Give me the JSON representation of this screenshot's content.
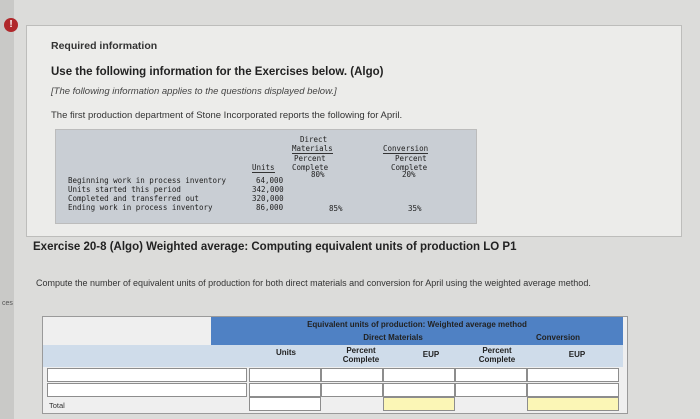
{
  "side": {
    "label": "ces"
  },
  "info": {
    "heading": "Required information",
    "subheading": "Use the following information for the Exercises below. (Algo)",
    "note": "[The following information applies to the questions displayed below.]",
    "intro": "The first production department of Stone Incorporated reports the following for April."
  },
  "data_table": {
    "headers": {
      "units": "Units",
      "dm_line1": "Direct",
      "dm_line2": "Materials",
      "dm_line3": "Percent",
      "dm_line4": "Complete",
      "cv_line1": "Conversion",
      "cv_line2": "Percent",
      "cv_line3": "Complete"
    },
    "rows": [
      {
        "label": "Beginning work in process inventory",
        "units": "64,000",
        "dm": "80%",
        "cv": "20%"
      },
      {
        "label": "Units started this period",
        "units": "342,000",
        "dm": "",
        "cv": ""
      },
      {
        "label": "Completed and transferred out",
        "units": "320,000",
        "dm": "",
        "cv": ""
      },
      {
        "label": "Ending work in process inventory",
        "units": "86,000",
        "dm": "85%",
        "cv": "35%"
      }
    ]
  },
  "exercise": {
    "title": "Exercise 20-8 (Algo) Weighted average: Computing equivalent units of production LO P1",
    "instructions": "Compute the number of equivalent units of production for both direct materials and conversion for April using the weighted average method."
  },
  "answer_table": {
    "title": "Equivalent units of production: Weighted average method",
    "dm_header": "Direct Materials",
    "conversion_header": "Conversion",
    "units_header": "Units",
    "pct_header_1": "Percent",
    "pct_header_2": "Complete",
    "eup_header": "EUP",
    "total_label": "Total"
  }
}
